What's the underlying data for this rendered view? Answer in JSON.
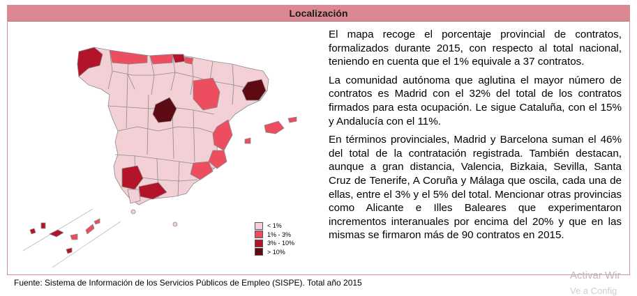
{
  "section": {
    "title": "Localización"
  },
  "paragraphs": [
    "El mapa recoge el porcentaje provincial de contratos, formalizados durante 2015, con respecto al total nacional, teniendo en cuenta que el 1% equivale a 37 contratos.",
    "La comunidad autónoma que aglutina el mayor número de contratos es Madrid con el 32% del total de los contratos firmados para esta ocupación. Le sigue Cataluña, con el 15% y Andalucía con el 11%.",
    "En términos provinciales, Madrid y Barcelona suman el 46% del total de la contratación registrada. También destacan, aunque a gran distancia, Valencia, Bizkaia, Sevilla, Santa Cruz de Tenerife, A Coruña y Málaga que oscila, cada una de ellas, entre el 3% y el 5% del total. Mencionar otras provincias como Alicante e Illes Baleares que experimentaron incrementos interanuales por encima del 20% y que en las mismas se firmaron más de 90 contratos en 2015."
  ],
  "legend": [
    {
      "label": "< 1%",
      "color": "#f2d0d5"
    },
    {
      "label": "1%  -  3%",
      "color": "#ec4e60"
    },
    {
      "label": "3%  -  10%",
      "color": "#b3142a"
    },
    {
      "label": "> 10%",
      "color": "#5e0a12"
    }
  ],
  "colors": {
    "border": "#d98a94",
    "header_bg": "#dc8893",
    "province_border": "#8a8a8a"
  },
  "footer": {
    "source": "Fuente: Sistema de Información de los Servicios Públicos de Empleo (SISPE). Total año 2015"
  },
  "watermark": {
    "line1": "Activar Wir",
    "line2": "Ve a Config"
  }
}
